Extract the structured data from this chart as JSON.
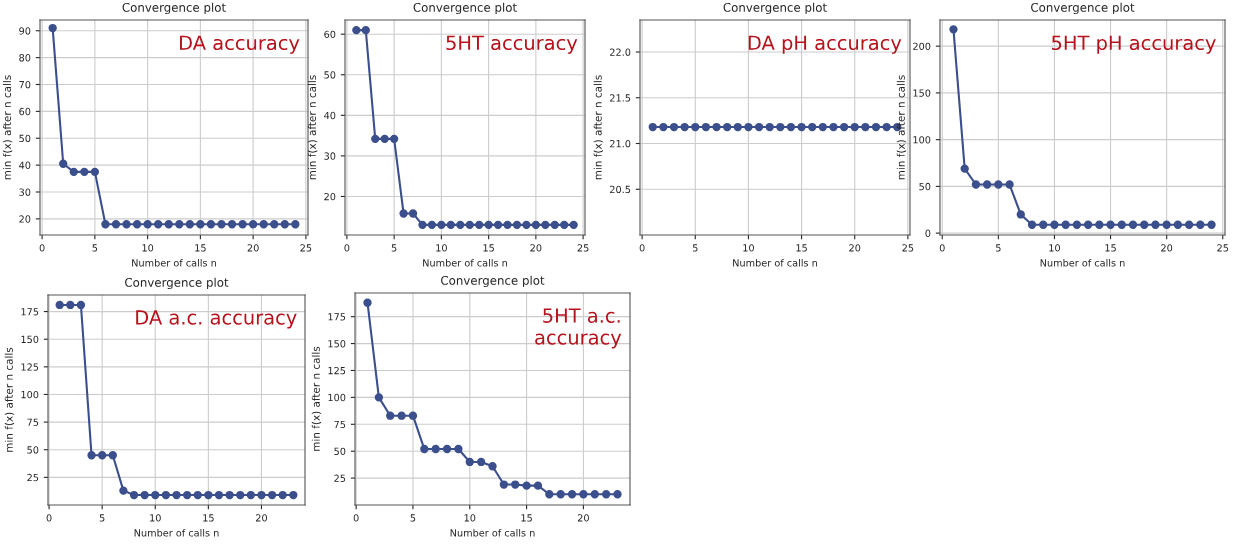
{
  "chart_data": [
    {
      "type": "line",
      "title": "Convergence plot",
      "xlabel": "Number of calls n",
      "ylabel": "min f(x) after n calls",
      "annotations": [
        "DA accuracy"
      ],
      "marker": "circle",
      "grid": true,
      "x": [
        1,
        2,
        3,
        4,
        5,
        6,
        7,
        8,
        9,
        10,
        11,
        12,
        13,
        14,
        15,
        16,
        17,
        18,
        19,
        20,
        21,
        22,
        23,
        24
      ],
      "series": [
        {
          "color": "#3b4f8c",
          "values": [
            91,
            40.5,
            37.5,
            37.5,
            37.5,
            18,
            18,
            18,
            18,
            18,
            18,
            18,
            18,
            18,
            18,
            18,
            18,
            18,
            18,
            18,
            18,
            18,
            18,
            18
          ]
        }
      ],
      "xlim": [
        -0.2,
        25.2
      ],
      "xticks": [
        0,
        5,
        10,
        15,
        20,
        25
      ],
      "ylim": [
        14,
        94
      ],
      "yticks": [
        20,
        30,
        40,
        50,
        60,
        70,
        80,
        90
      ]
    },
    {
      "type": "line",
      "title": "Convergence plot",
      "xlabel": "Number of calls n",
      "ylabel": "min f(x) after n calls",
      "annotations": [
        "5HT accuracy"
      ],
      "marker": "circle",
      "grid": true,
      "x": [
        1,
        2,
        3,
        4,
        5,
        6,
        7,
        8,
        9,
        10,
        11,
        12,
        13,
        14,
        15,
        16,
        17,
        18,
        19,
        20,
        21,
        22,
        23,
        24
      ],
      "series": [
        {
          "color": "#3b4f8c",
          "values": [
            61,
            61,
            34.2,
            34.2,
            34.2,
            15.8,
            15.8,
            13,
            13,
            13,
            13,
            13,
            13,
            13,
            13,
            13,
            13,
            13,
            13,
            13,
            13,
            13,
            13,
            13
          ]
        }
      ],
      "xlim": [
        -0.2,
        25.2
      ],
      "xticks": [
        0,
        5,
        10,
        15,
        20,
        25
      ],
      "ylim": [
        10.5,
        63.5
      ],
      "yticks": [
        20,
        30,
        40,
        50,
        60
      ]
    },
    {
      "type": "line",
      "title": "Convergence plot",
      "xlabel": "Number of calls n",
      "ylabel": "min f(x) after n calls",
      "annotations": [
        "DA pH accuracy"
      ],
      "marker": "circle",
      "grid": true,
      "x": [
        1,
        2,
        3,
        4,
        5,
        6,
        7,
        8,
        9,
        10,
        11,
        12,
        13,
        14,
        15,
        16,
        17,
        18,
        19,
        20,
        21,
        22,
        23,
        24
      ],
      "series": [
        {
          "color": "#3b4f8c",
          "values": [
            21.18,
            21.18,
            21.18,
            21.18,
            21.18,
            21.18,
            21.18,
            21.18,
            21.18,
            21.18,
            21.18,
            21.18,
            21.18,
            21.18,
            21.18,
            21.18,
            21.18,
            21.18,
            21.18,
            21.18,
            21.18,
            21.18,
            21.18,
            21.18
          ]
        }
      ],
      "xlim": [
        -0.2,
        25.2
      ],
      "xticks": [
        0,
        5,
        10,
        15,
        20,
        25
      ],
      "ylim": [
        20.0,
        22.35
      ],
      "yticks": [
        20.5,
        {
          "value": 21,
          "label": "21.0"
        },
        21.5,
        {
          "value": 22,
          "label": "22.0"
        }
      ]
    },
    {
      "type": "line",
      "title": "Convergence plot",
      "xlabel": "Number of calls n",
      "ylabel": "min f(x) after n calls",
      "annotations": [
        "5HT pH accuracy"
      ],
      "marker": "circle",
      "grid": true,
      "x": [
        1,
        2,
        3,
        4,
        5,
        6,
        7,
        8,
        9,
        10,
        11,
        12,
        13,
        14,
        15,
        16,
        17,
        18,
        19,
        20,
        21,
        22,
        23,
        24
      ],
      "series": [
        {
          "color": "#3b4f8c",
          "values": [
            218,
            69,
            52,
            52,
            52,
            52,
            20,
            9,
            9,
            9,
            9,
            9,
            9,
            9,
            9,
            9,
            9,
            9,
            9,
            9,
            9,
            9,
            9,
            9
          ]
        }
      ],
      "xlim": [
        -0.2,
        25.2
      ],
      "xticks": [
        0,
        5,
        10,
        15,
        20,
        25
      ],
      "ylim": [
        -2,
        228
      ],
      "yticks": [
        0,
        50,
        100,
        150,
        200
      ]
    },
    {
      "type": "line",
      "title": "Convergence plot",
      "xlabel": "Number of calls n",
      "ylabel": "min f(x) after n calls",
      "annotations": [
        "DA a.c. accuracy"
      ],
      "marker": "circle",
      "grid": true,
      "x": [
        1,
        2,
        3,
        4,
        5,
        6,
        7,
        8,
        9,
        10,
        11,
        12,
        13,
        14,
        15,
        16,
        17,
        18,
        19,
        20,
        21,
        22,
        23
      ],
      "series": [
        {
          "color": "#3b4f8c",
          "values": [
            181,
            181,
            181,
            45,
            45,
            45,
            13,
            9,
            9,
            9,
            9,
            9,
            9,
            9,
            9,
            9,
            9,
            9,
            9,
            9,
            9,
            9,
            9
          ]
        }
      ],
      "xlim": [
        -0.1,
        24.1
      ],
      "xticks": [
        0,
        5,
        10,
        15,
        20
      ],
      "ylim": [
        0,
        190
      ],
      "yticks": [
        25,
        50,
        75,
        100,
        125,
        150,
        175
      ]
    },
    {
      "type": "line",
      "title": "Convergence plot",
      "xlabel": "Number of calls n",
      "ylabel": "min f(x) after n calls",
      "annotations": [
        "5HT a.c.\naccuracy"
      ],
      "marker": "circle",
      "grid": true,
      "x": [
        1,
        2,
        3,
        4,
        5,
        6,
        7,
        8,
        9,
        10,
        11,
        12,
        13,
        14,
        15,
        16,
        17,
        18,
        19,
        20,
        21,
        22,
        23
      ],
      "series": [
        {
          "color": "#3b4f8c",
          "values": [
            188,
            100,
            83,
            83,
            83,
            52,
            52,
            52,
            52,
            40,
            40,
            36,
            19,
            19,
            18,
            18,
            10,
            10,
            10,
            10,
            10,
            10,
            10
          ]
        }
      ],
      "xlim": [
        -0.1,
        24.1
      ],
      "xticks": [
        0,
        5,
        10,
        15,
        20
      ],
      "ylim": [
        0,
        197
      ],
      "yticks": [
        25,
        50,
        75,
        100,
        125,
        150,
        175
      ]
    }
  ]
}
